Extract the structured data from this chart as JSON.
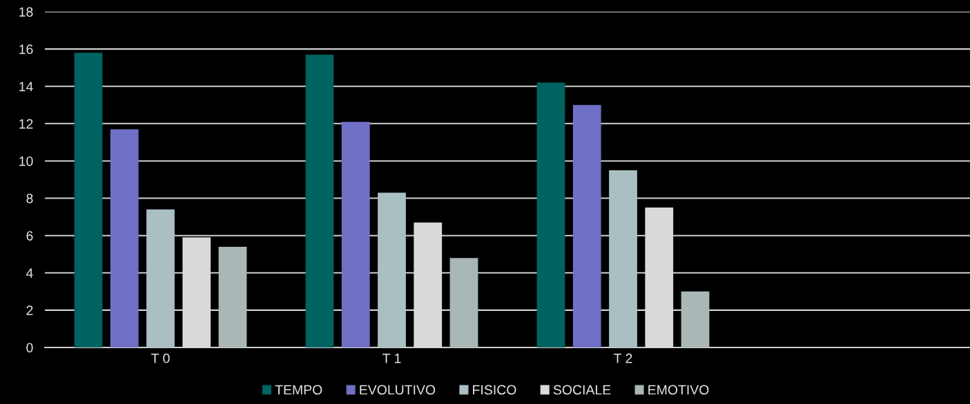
{
  "chart_data": {
    "type": "bar",
    "categories": [
      "T 0",
      "T 1",
      "T 2",
      null
    ],
    "series": [
      {
        "name": "TEMPO",
        "color": "#006361",
        "values": [
          15.8,
          15.7,
          14.2,
          null
        ]
      },
      {
        "name": "EVOLUTIVO",
        "color": "#7070c6",
        "values": [
          11.7,
          12.1,
          13.0,
          null
        ]
      },
      {
        "name": "FISICO",
        "color": "#aabfc1",
        "values": [
          7.4,
          8.3,
          9.5,
          null
        ]
      },
      {
        "name": "SOCIALE",
        "color": "#d9d9d9",
        "values": [
          5.9,
          6.7,
          7.5,
          null
        ]
      },
      {
        "name": "EMOTIVO",
        "color": "#a9b7b6",
        "values": [
          5.4,
          4.8,
          3.0,
          null
        ]
      }
    ],
    "ylim": [
      0,
      18
    ],
    "yticks": [
      0,
      2,
      4,
      6,
      8,
      10,
      12,
      14,
      16,
      18
    ],
    "grid": "y",
    "legend": "bottom"
  }
}
